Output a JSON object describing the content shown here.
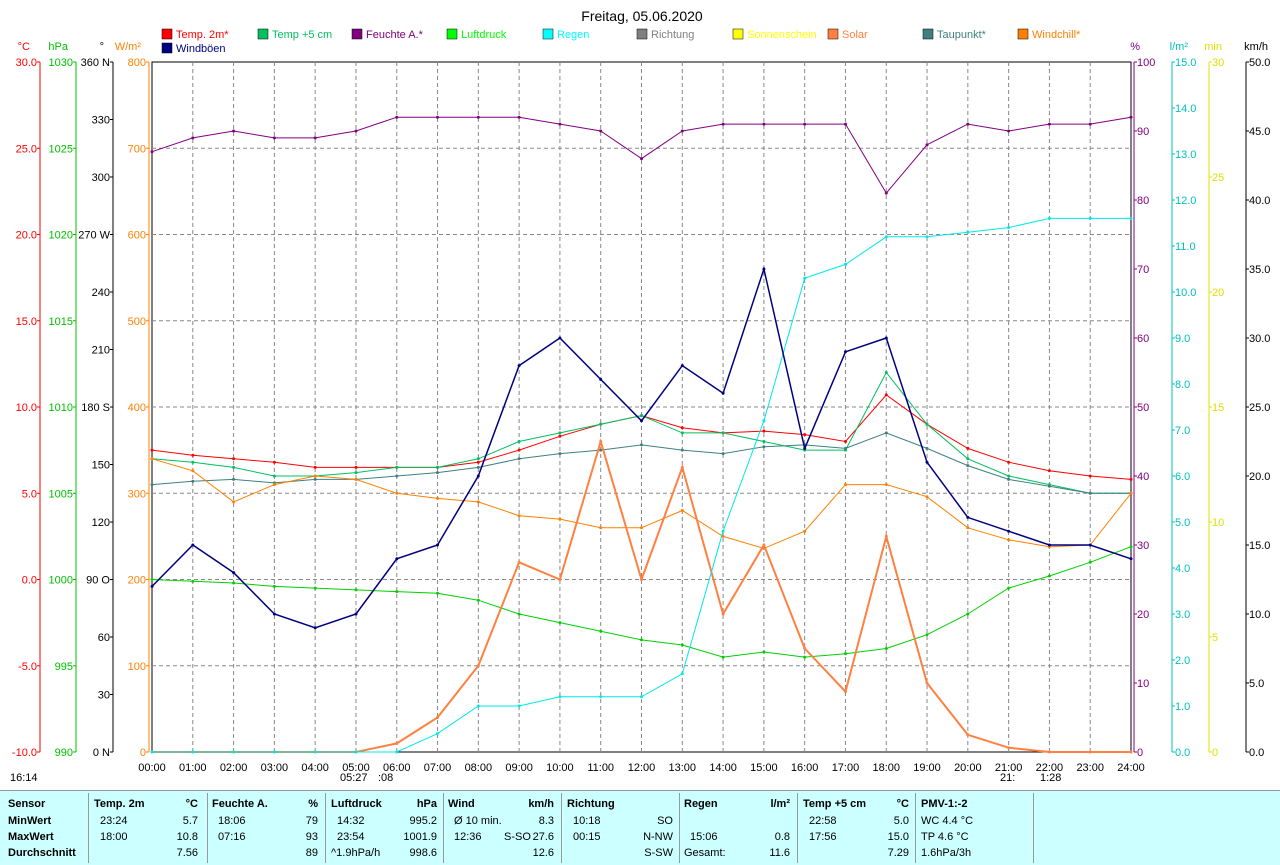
{
  "title": "Freitag, 05.06.2020",
  "legend": [
    {
      "label": "Temp. 2m*",
      "color": "#ff0000"
    },
    {
      "label": "Temp +5 cm",
      "color": "#00c060"
    },
    {
      "label": "Feuchte A.*",
      "color": "#800080"
    },
    {
      "label": "Luftdruck",
      "color": "#00ff00"
    },
    {
      "label": "Regen",
      "color": "#00ffff"
    },
    {
      "label": "Richtung",
      "color": "#808080"
    },
    {
      "label": "Sonnenschein",
      "color": "#ffff00"
    },
    {
      "label": "Solar",
      "color": "#ff8040"
    },
    {
      "label": "Taupunkt*",
      "color": "#408080"
    },
    {
      "label": "Windchill*",
      "color": "#ff8000"
    },
    {
      "label": "Windböen",
      "color": "#000080"
    }
  ],
  "axes": {
    "temp": {
      "unit": "°C",
      "color": "#ff0000",
      "ticks": [
        "30.0",
        "25.0",
        "20.0",
        "15.0",
        "10.0",
        "5.0",
        "0.0",
        "-5.0",
        "-10.0"
      ]
    },
    "pressure": {
      "unit": "hPa",
      "color": "#00c000",
      "ticks": [
        "1030",
        "1025",
        "1020",
        "1015",
        "1010",
        "1005",
        "1000",
        "995",
        "990"
      ]
    },
    "direction": {
      "unit": "°",
      "color": "#000000",
      "ticks": [
        "360 N",
        "330",
        "300",
        "270 W",
        "240",
        "210",
        "180 S",
        "150",
        "120",
        "90 O",
        "60",
        "30",
        "0 N"
      ]
    },
    "solar": {
      "unit": "W/m²",
      "color": "#ff8000",
      "ticks": [
        "800",
        "700",
        "600",
        "500",
        "400",
        "300",
        "200",
        "100",
        "0"
      ]
    },
    "humidity": {
      "unit": "%",
      "color": "#800080",
      "ticks": [
        "100",
        "90",
        "80",
        "70",
        "60",
        "50",
        "40",
        "30",
        "20",
        "10",
        "0"
      ]
    },
    "rain": {
      "unit": "l/m²",
      "color": "#00c0c0",
      "ticks": [
        "15.0",
        "14.0",
        "13.0",
        "12.0",
        "11.0",
        "10.0",
        "9.0",
        "8.0",
        "7.0",
        "6.0",
        "5.0",
        "4.0",
        "3.0",
        "2.0",
        "1.0",
        "0.0"
      ]
    },
    "sunshine": {
      "unit": "min",
      "color": "#e0e000",
      "ticks": [
        "30",
        "25",
        "20",
        "15",
        "10",
        "5",
        "0"
      ]
    },
    "wind": {
      "unit": "km/h",
      "color": "#000000",
      "ticks": [
        "50.0",
        "45.0",
        "40.0",
        "35.0",
        "30.0",
        "25.0",
        "20.0",
        "15.0",
        "10.0",
        "5.0",
        "0.0"
      ]
    },
    "time": {
      "ticks": [
        "00:00",
        "01:00",
        "02:00",
        "03:00",
        "04:00",
        "05:00",
        "06:00",
        "07:00",
        "08:00",
        "09:00",
        "10:00",
        "11:00",
        "12:00",
        "13:00",
        "14:00",
        "15:00",
        "16:00",
        "17:00",
        "18:00",
        "19:00",
        "20:00",
        "21:00",
        "22:00",
        "23:00",
        "24:00"
      ]
    }
  },
  "sun_events": {
    "sunset_left": "16:14",
    "sunrise": "05:27",
    "sunrise_suffix": ":08",
    "sunset": "21:",
    "sunset_suffix": "1:28"
  },
  "chart_data": {
    "type": "line",
    "x": [
      "00:00",
      "01:00",
      "02:00",
      "03:00",
      "04:00",
      "05:00",
      "06:00",
      "07:00",
      "08:00",
      "09:00",
      "10:00",
      "11:00",
      "12:00",
      "13:00",
      "14:00",
      "15:00",
      "16:00",
      "17:00",
      "18:00",
      "19:00",
      "20:00",
      "21:00",
      "22:00",
      "23:00",
      "24:00"
    ],
    "series": [
      {
        "name": "Temp. 2m*",
        "axis": "temp",
        "color": "#ff0000",
        "values": [
          7.5,
          7.2,
          7.0,
          6.8,
          6.5,
          6.5,
          6.5,
          6.5,
          6.8,
          7.5,
          8.3,
          9.0,
          9.5,
          8.8,
          8.5,
          8.6,
          8.4,
          8.0,
          10.7,
          9.0,
          7.6,
          6.8,
          6.3,
          6.0,
          5.8
        ]
      },
      {
        "name": "Temp +5 cm",
        "axis": "temp",
        "color": "#00c060",
        "values": [
          7.0,
          6.8,
          6.5,
          6.0,
          6.0,
          6.2,
          6.5,
          6.5,
          7.0,
          8.0,
          8.5,
          9.0,
          9.5,
          8.5,
          8.5,
          8.0,
          7.5,
          7.5,
          12.0,
          9.0,
          7.0,
          6.0,
          5.5,
          5.0,
          5.0
        ]
      },
      {
        "name": "Feuchte A.*",
        "axis": "humidity",
        "color": "#800080",
        "values": [
          87,
          89,
          90,
          89,
          89,
          90,
          92,
          92,
          92,
          92,
          91,
          90,
          86,
          90,
          91,
          91,
          91,
          91,
          81,
          88,
          91,
          90,
          91,
          91,
          92
        ]
      },
      {
        "name": "Luftdruck",
        "axis": "pressure",
        "color": "#00d000",
        "values": [
          1000.0,
          999.9,
          999.8,
          999.6,
          999.5,
          999.4,
          999.3,
          999.2,
          998.8,
          998.0,
          997.5,
          997.0,
          996.5,
          996.2,
          995.5,
          995.8,
          995.5,
          995.7,
          996.0,
          996.8,
          998.0,
          999.5,
          1000.2,
          1001.0,
          1001.9
        ]
      },
      {
        "name": "Taupunkt*",
        "axis": "temp",
        "color": "#408080",
        "values": [
          5.5,
          5.7,
          5.8,
          5.6,
          5.8,
          5.8,
          6.0,
          6.2,
          6.5,
          7.0,
          7.3,
          7.5,
          7.8,
          7.5,
          7.3,
          7.7,
          7.8,
          7.6,
          8.5,
          7.6,
          6.6,
          5.8,
          5.4,
          5.0,
          5.0
        ]
      },
      {
        "name": "Windchill*",
        "axis": "temp",
        "color": "#ff8000",
        "values": [
          7.0,
          6.3,
          4.5,
          5.5,
          6.0,
          5.8,
          5.0,
          4.7,
          4.5,
          3.7,
          3.5,
          3.0,
          3.0,
          4.0,
          2.5,
          1.8,
          2.8,
          5.5,
          5.5,
          4.8,
          3.0,
          2.3,
          1.9,
          2.0,
          5.0
        ]
      },
      {
        "name": "Solar",
        "axis": "solar",
        "color": "#ff8040",
        "values": [
          0,
          0,
          0,
          0,
          0,
          0,
          10,
          40,
          100,
          220,
          200,
          360,
          200,
          330,
          160,
          240,
          120,
          70,
          250,
          80,
          20,
          5,
          0,
          0,
          0
        ]
      },
      {
        "name": "Regen",
        "axis": "rain",
        "color": "#00e8e8",
        "values": [
          0.0,
          0.0,
          0.0,
          0.0,
          0.0,
          0.0,
          0.0,
          0.4,
          1.0,
          1.0,
          1.2,
          1.2,
          1.2,
          1.7,
          4.8,
          7.2,
          10.3,
          10.6,
          11.2,
          11.2,
          11.3,
          11.4,
          11.6,
          11.6,
          11.6
        ]
      },
      {
        "name": "Windböen",
        "axis": "wind",
        "color": "#000080",
        "values": [
          12,
          15,
          13,
          10,
          9,
          10,
          14,
          15,
          20,
          28,
          30,
          27,
          24,
          28,
          26,
          35,
          22,
          29,
          30,
          21,
          17,
          16,
          15,
          15,
          14
        ]
      }
    ],
    "units": {
      "temp": "°C",
      "pressure": "hPa",
      "humidity": "%",
      "solar": "W/m²",
      "rain": "l/m²",
      "wind": "km/h",
      "direction": "°",
      "sunshine": "min"
    },
    "ranges": {
      "temp": [
        -10,
        30
      ],
      "pressure": [
        990,
        1030
      ],
      "humidity": [
        0,
        100
      ],
      "solar": [
        0,
        800
      ],
      "rain": [
        0,
        15
      ],
      "wind": [
        0,
        50
      ],
      "direction": [
        0,
        360
      ],
      "sunshine": [
        0,
        30
      ]
    },
    "grid": true,
    "legend_position": "top"
  },
  "stats": {
    "row_labels": [
      "Sensor",
      "MinWert",
      "MaxWert",
      "Durchschnitt"
    ],
    "temp": {
      "title": "Temp. 2m",
      "unit": "°C",
      "min_time": "23:24",
      "min": "5.7",
      "max_time": "18:00",
      "max": "10.8",
      "avg": "7.56"
    },
    "humidity": {
      "title": "Feuchte A.",
      "unit": "%",
      "min_time": "18:06",
      "min": "79",
      "max_time": "07:16",
      "max": "93",
      "avg": "89"
    },
    "pressure": {
      "title": "Luftdruck",
      "unit": "hPa",
      "min_time": "14:32",
      "min": "995.2",
      "max_time": "23:54",
      "max": "1001.9",
      "trend": "^1.9hPa/h",
      "avg": "998.6"
    },
    "wind": {
      "title": "Wind",
      "unit": "km/h",
      "min_label": "Ø 10 min.",
      "min": "8.3",
      "max_time": "12:36",
      "max_dir": "S-SO",
      "max": "27.6",
      "avg": "12.6"
    },
    "direction": {
      "title": "Richtung",
      "min_time": "10:18",
      "min": "SO",
      "max_time": "00:15",
      "max": "N-NW",
      "avg": "S-SW"
    },
    "rain": {
      "title": "Regen",
      "unit": "l/m²",
      "max_time": "15:06",
      "max": "0.8",
      "total_label": "Gesamt:",
      "total": "11.6"
    },
    "temp5": {
      "title": "Temp +5 cm",
      "unit": "°C",
      "min_time": "22:58",
      "min": "5.0",
      "max_time": "17:56",
      "max": "15.0",
      "avg": "7.29"
    },
    "pmv": {
      "title": "PMV-1:-2",
      "wc": "WC 4.4 °C",
      "tp": "TP 4.6 °C",
      "trend": "1.6hPa/3h"
    }
  }
}
